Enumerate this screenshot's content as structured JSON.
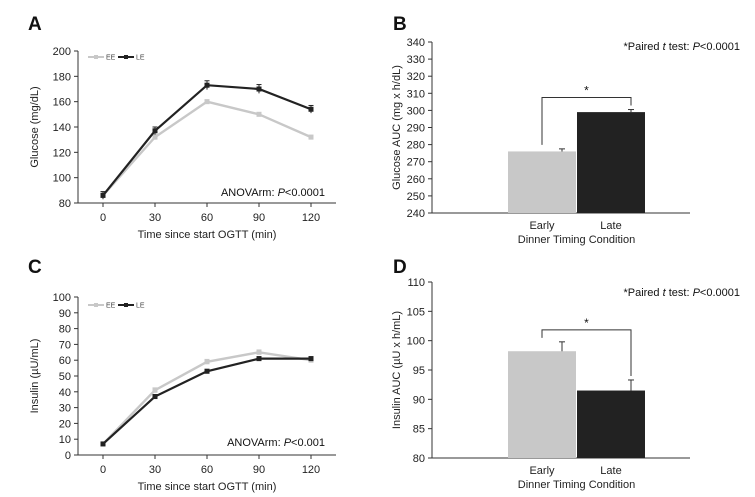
{
  "colors": {
    "early": "#c8c8c8",
    "late": "#222222",
    "axis": "#333333"
  },
  "chart_data": [
    {
      "panel": "A",
      "type": "line",
      "xlabel": "Time since start OGTT (min)",
      "ylabel": "Glucose (mg/dL)",
      "categories": [
        "0",
        "30",
        "60",
        "90",
        "120"
      ],
      "ylim": [
        80,
        200
      ],
      "yticks": [
        80,
        100,
        120,
        140,
        160,
        180,
        200
      ],
      "legend": "top-left",
      "annotation": {
        "prefix": "ANOVArm: ",
        "italic": "P",
        "suffix": "<0.0001"
      },
      "series": [
        {
          "name": "EE",
          "values": [
            86,
            132,
            160,
            150,
            132
          ],
          "errors": [
            2,
            2,
            1.5,
            1.5,
            1.5
          ]
        },
        {
          "name": "LE",
          "values": [
            86,
            137,
            173,
            170,
            154
          ],
          "errors": [
            3,
            3,
            3.5,
            3.5,
            3
          ]
        }
      ]
    },
    {
      "panel": "B",
      "type": "bar",
      "xlabel": "Dinner Timing Condition",
      "ylabel": "Glucose AUC (mg x h/dL)",
      "categories": [
        "Early",
        "Late"
      ],
      "values": [
        276,
        299
      ],
      "errors": [
        1.5,
        1.5
      ],
      "ylim": [
        240,
        340
      ],
      "yticks": [
        240,
        250,
        260,
        270,
        280,
        290,
        300,
        310,
        320,
        330,
        340
      ],
      "significance": "*",
      "annotation": {
        "prefix": "*Paired ",
        "italic": "t",
        "middle": " test: ",
        "italic2": "P",
        "suffix": "<0.0001"
      }
    },
    {
      "panel": "C",
      "type": "line",
      "xlabel": "Time since start OGTT (min)",
      "ylabel": "Insulin (µU/mL)",
      "categories": [
        "0",
        "30",
        "60",
        "90",
        "120"
      ],
      "ylim": [
        0,
        100
      ],
      "yticks": [
        0,
        10,
        20,
        30,
        40,
        50,
        60,
        70,
        80,
        90,
        100
      ],
      "legend": "top-left",
      "annotation": {
        "prefix": "ANOVArm: ",
        "italic": "P",
        "suffix": "<0.001"
      },
      "series": [
        {
          "name": "EE",
          "values": [
            7,
            41,
            59,
            65,
            60
          ],
          "errors": [
            0.8,
            1.5,
            1.5,
            1.5,
            1.2
          ]
        },
        {
          "name": "LE",
          "values": [
            7,
            37,
            53,
            61,
            61
          ],
          "errors": [
            0.8,
            1.2,
            1.2,
            1.2,
            1.2
          ]
        }
      ]
    },
    {
      "panel": "D",
      "type": "bar",
      "xlabel": "Dinner Timing Condition",
      "ylabel": "Insulin AUC (µU x h/mL)",
      "categories": [
        "Early",
        "Late"
      ],
      "values": [
        98.2,
        91.5
      ],
      "errors": [
        1.6,
        1.8
      ],
      "ylim": [
        80,
        110
      ],
      "yticks": [
        80,
        85,
        90,
        95,
        100,
        105,
        110
      ],
      "significance": "*",
      "annotation": {
        "prefix": "*Paired ",
        "italic": "t",
        "middle": " test: ",
        "italic2": "P",
        "suffix": "<0.0001"
      }
    }
  ]
}
